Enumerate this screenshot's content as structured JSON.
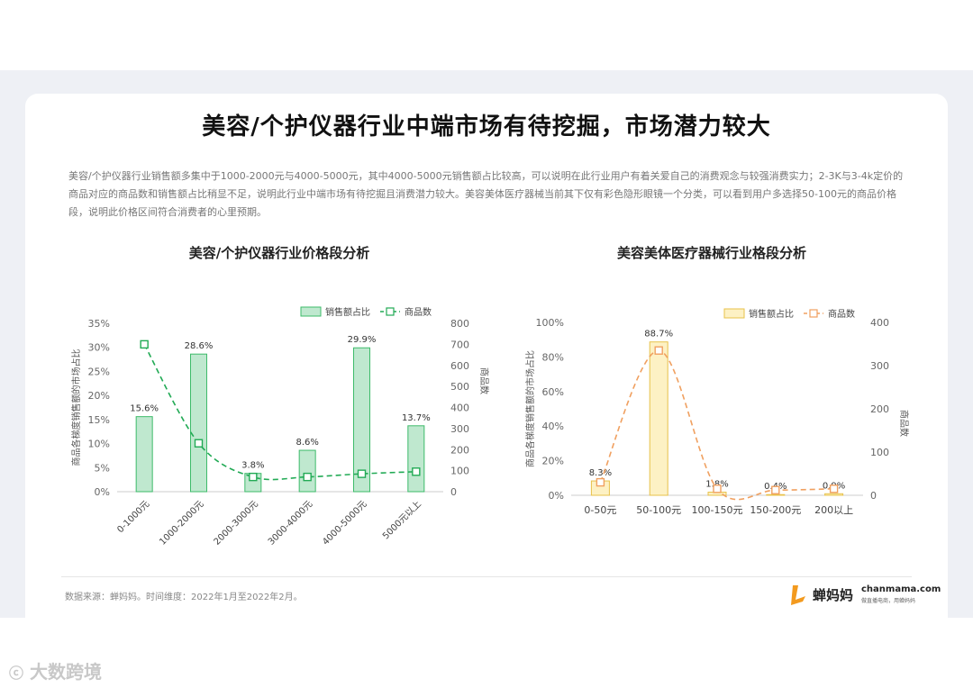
{
  "page": {
    "title": "美容/个护仪器行业中端市场有待挖掘，市场潜力较大",
    "description": "美容/个护仪器行业销售额多集中于1000-2000元与4000-5000元，其中4000-5000元销售额占比较高，可以说明在此行业用户有着关爱自己的消费观念与较强消费实力；2-3K与3-4k定价的商品对应的商品数和销售额占比稍显不足，说明此行业中端市场有待挖掘且消费潜力较大。美容美体医疗器械当前其下仅有彩色隐形眼镜一个分类，可以看到用户多选择50-100元的商品价格段，说明此价格区间符合消费者的心里预期。",
    "source": "数据来源：蝉妈妈。时间维度：2022年1月至2022年2月。",
    "brand_name": "蝉妈妈",
    "brand_site": "chanmama.com",
    "brand_tagline": "做直播电商，用蝉妈妈",
    "watermark": "大数跨境"
  },
  "chart_data": [
    {
      "type": "bar",
      "title": "美容/个护仪器行业价格段分析",
      "categories": [
        "0-1000元",
        "1000-2000元",
        "2000-3000元",
        "3000-4000元",
        "4000-5000元",
        "5000元以上"
      ],
      "series": [
        {
          "name": "销售额占比",
          "type": "bar",
          "axis": "left",
          "values": [
            15.6,
            28.6,
            3.8,
            8.6,
            29.9,
            13.7
          ],
          "labels": [
            "15.6%",
            "28.6%",
            "3.8%",
            "8.6%",
            "29.9%",
            "13.7%"
          ]
        },
        {
          "name": "商品数",
          "type": "line",
          "axis": "right",
          "values": [
            700,
            230,
            70,
            70,
            85,
            95
          ]
        }
      ],
      "ylabel": "商品各梯度销售额的市场占比",
      "y2label": "商品数",
      "ylim": [
        0,
        35
      ],
      "yticks": [
        "0%",
        "5%",
        "10%",
        "15%",
        "20%",
        "25%",
        "30%",
        "35%"
      ],
      "y2lim": [
        0,
        800
      ],
      "y2ticks": [
        "0",
        "100",
        "200",
        "300",
        "400",
        "500",
        "600",
        "700",
        "800"
      ],
      "legend": "top-right",
      "colors": {
        "bar_fill": "#bfe8cf",
        "bar_stroke": "#3dbb6a",
        "line": "#22aa55"
      }
    },
    {
      "type": "bar",
      "title": "美容美体医疗器械行业格段分析",
      "categories": [
        "0-50元",
        "50-100元",
        "100-150元",
        "150-200元",
        "200以上"
      ],
      "series": [
        {
          "name": "销售额占比",
          "type": "bar",
          "axis": "left",
          "values": [
            8.3,
            88.7,
            1.8,
            0.4,
            0.9
          ],
          "labels": [
            "8.3%",
            "88.7%",
            "1.8%",
            "0.4%",
            "0.9%"
          ]
        },
        {
          "name": "商品数",
          "type": "line",
          "axis": "right",
          "values": [
            30,
            335,
            15,
            12,
            15
          ]
        }
      ],
      "ylabel": "商品各梯度销售额的市场占比",
      "y2label": "商品数",
      "ylim": [
        0,
        100
      ],
      "yticks": [
        "0%",
        "20%",
        "40%",
        "60%",
        "80%",
        "100%"
      ],
      "y2lim": [
        0,
        400
      ],
      "y2ticks": [
        "0",
        "100",
        "200",
        "300",
        "400"
      ],
      "legend": "top-right",
      "colors": {
        "bar_fill": "#fdf1c4",
        "bar_stroke": "#e8c24a",
        "line": "#f0a060"
      }
    }
  ]
}
